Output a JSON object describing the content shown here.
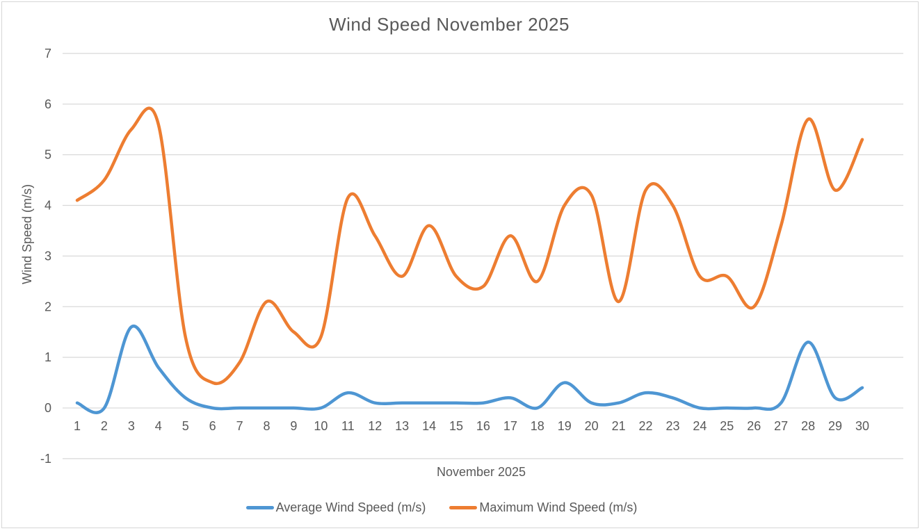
{
  "page": {
    "background": "#ffffff",
    "frame_border_color": "#d6d6d6",
    "text_color": "#595959",
    "gridline_color": "#d9d9d9"
  },
  "chart_data": {
    "type": "line",
    "title": "Wind Speed November 2025",
    "x_axis_label": "November 2025",
    "y_axis_label": "Wind Speed (m/s)",
    "smooth": true,
    "grid": true,
    "legend_position": "bottom",
    "ylim": [
      -1,
      7
    ],
    "y_ticks": [
      7,
      6,
      5,
      4,
      3,
      2,
      1,
      0,
      -1
    ],
    "x_ticks": [
      1,
      2,
      3,
      4,
      5,
      6,
      7,
      8,
      9,
      10,
      11,
      12,
      13,
      14,
      15,
      16,
      17,
      18,
      19,
      20,
      21,
      22,
      23,
      24,
      25,
      26,
      27,
      28,
      29,
      30
    ],
    "series": [
      {
        "name": "Average Wind Speed (m/s)",
        "color": "#4E96D3",
        "values": [
          0.1,
          0.0,
          1.6,
          0.8,
          0.2,
          0.0,
          0.0,
          0.0,
          0.0,
          0.0,
          0.3,
          0.1,
          0.1,
          0.1,
          0.1,
          0.1,
          0.2,
          0.0,
          0.5,
          0.1,
          0.1,
          0.3,
          0.2,
          0.0,
          0.0,
          0.0,
          0.1,
          1.3,
          0.2,
          0.4
        ]
      },
      {
        "name": "Maximum Wind Speed (m/s)",
        "color": "#ED7D31",
        "values": [
          4.1,
          4.5,
          5.5,
          5.6,
          1.4,
          0.5,
          0.9,
          2.1,
          1.5,
          1.4,
          4.15,
          3.4,
          2.6,
          3.6,
          2.6,
          2.4,
          3.4,
          2.5,
          4.0,
          4.2,
          2.1,
          4.3,
          4.0,
          2.6,
          2.6,
          2.0,
          3.6,
          5.7,
          4.3,
          5.3
        ]
      }
    ]
  }
}
